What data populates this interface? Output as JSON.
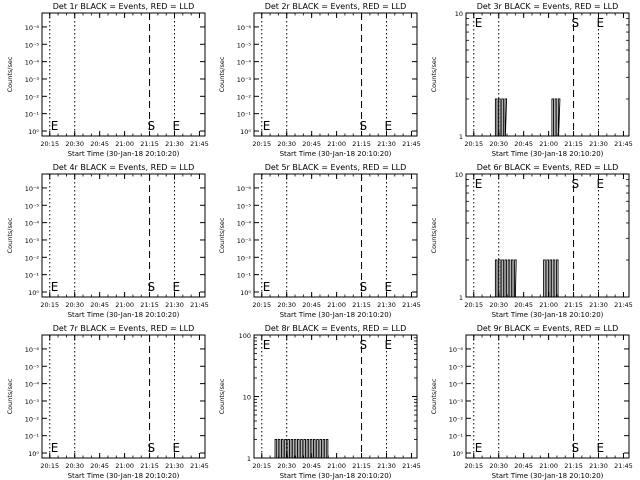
{
  "chart_data": [
    {
      "type": "line",
      "title": "Det 1r BLACK = Events, RED = LLD",
      "ylabel": "Counts/sec",
      "xlabel": "Start Time (30-Jan-18 20:10:20)",
      "yscale": "log",
      "y_ticks": [
        "10⁰",
        "10⁻¹",
        "10⁻²",
        "10⁻³",
        "10⁻⁴",
        "10⁻⁵",
        "10⁻⁶"
      ],
      "x_ticks": [
        "20:15",
        "20:30",
        "20:45",
        "21:00",
        "21:15",
        "21:30",
        "21:45"
      ],
      "markers": [
        {
          "label": "E",
          "time": "20:15"
        },
        {
          "label": "S",
          "time": "21:15"
        },
        {
          "label": "E",
          "time": "21:30"
        }
      ],
      "series": []
    },
    {
      "type": "line",
      "title": "Det 2r BLACK = Events, RED = LLD",
      "ylabel": "Counts/sec",
      "xlabel": "Start Time (30-Jan-18 20:10:20)",
      "yscale": "log",
      "y_ticks": [
        "10⁰",
        "10⁻¹",
        "10⁻²",
        "10⁻³",
        "10⁻⁴",
        "10⁻⁵",
        "10⁻⁶"
      ],
      "x_ticks": [
        "20:15",
        "20:30",
        "20:45",
        "21:00",
        "21:15",
        "21:30",
        "21:45"
      ],
      "markers": [
        {
          "label": "E",
          "time": "20:15"
        },
        {
          "label": "S",
          "time": "21:15"
        },
        {
          "label": "E",
          "time": "21:30"
        }
      ],
      "series": []
    },
    {
      "type": "line",
      "title": "Det 3r BLACK = Events, RED = LLD",
      "ylabel": "Counts/sec",
      "xlabel": "Start Time (30-Jan-18 20:10:20)",
      "yscale": "log",
      "y_ticks": [
        "1",
        "10"
      ],
      "x_ticks": [
        "20:15",
        "20:30",
        "20:45",
        "21:00",
        "21:15",
        "21:30",
        "21:45"
      ],
      "markers": [
        {
          "label": "E",
          "time": "20:15"
        },
        {
          "label": "S",
          "time": "21:15"
        },
        {
          "label": "E",
          "time": "21:30"
        }
      ],
      "series": [
        {
          "bursts": [
            {
              "start": "20:28",
              "end": "20:34",
              "value": 2
            },
            {
              "start": "21:02",
              "end": "21:06",
              "value": 2
            }
          ]
        }
      ]
    },
    {
      "type": "line",
      "title": "Det 4r BLACK = Events, RED = LLD",
      "ylabel": "Counts/sec",
      "xlabel": "Start Time (30-Jan-18 20:10:20)",
      "yscale": "log",
      "y_ticks": [
        "10⁰",
        "10⁻¹",
        "10⁻²",
        "10⁻³",
        "10⁻⁴",
        "10⁻⁵",
        "10⁻⁶"
      ],
      "x_ticks": [
        "20:15",
        "20:30",
        "20:45",
        "21:00",
        "21:15",
        "21:30",
        "21:45"
      ],
      "markers": [
        {
          "label": "E",
          "time": "20:15"
        },
        {
          "label": "S",
          "time": "21:15"
        },
        {
          "label": "E",
          "time": "21:30"
        }
      ],
      "series": []
    },
    {
      "type": "line",
      "title": "Det 5r BLACK = Events, RED = LLD",
      "ylabel": "Counts/sec",
      "xlabel": "Start Time (30-Jan-18 20:10:20)",
      "yscale": "log",
      "y_ticks": [
        "10⁰",
        "10⁻¹",
        "10⁻²",
        "10⁻³",
        "10⁻⁴",
        "10⁻⁵",
        "10⁻⁶"
      ],
      "x_ticks": [
        "20:15",
        "20:30",
        "20:45",
        "21:00",
        "21:15",
        "21:30",
        "21:45"
      ],
      "markers": [
        {
          "label": "E",
          "time": "20:15"
        },
        {
          "label": "S",
          "time": "21:15"
        },
        {
          "label": "E",
          "time": "21:30"
        }
      ],
      "series": []
    },
    {
      "type": "line",
      "title": "Det 6r BLACK = Events, RED = LLD",
      "ylabel": "Counts/sec",
      "xlabel": "Start Time (30-Jan-18 20:10:20)",
      "yscale": "log",
      "y_ticks": [
        "1",
        "10"
      ],
      "x_ticks": [
        "20:15",
        "20:30",
        "20:45",
        "21:00",
        "21:15",
        "21:30",
        "21:45"
      ],
      "markers": [
        {
          "label": "E",
          "time": "20:15"
        },
        {
          "label": "S",
          "time": "21:15"
        },
        {
          "label": "E",
          "time": "21:30"
        }
      ],
      "series": [
        {
          "bursts": [
            {
              "start": "20:28",
              "end": "20:40",
              "value": 2
            },
            {
              "start": "20:57",
              "end": "21:06",
              "value": 2
            }
          ]
        }
      ]
    },
    {
      "type": "line",
      "title": "Det 7r BLACK = Events, RED = LLD",
      "ylabel": "Counts/sec",
      "xlabel": "Start Time (30-Jan-18 20:10:20)",
      "yscale": "log",
      "y_ticks": [
        "10⁰",
        "10⁻¹",
        "10⁻²",
        "10⁻³",
        "10⁻⁴",
        "10⁻⁵",
        "10⁻⁶"
      ],
      "x_ticks": [
        "20:15",
        "20:30",
        "20:45",
        "21:00",
        "21:15",
        "21:30",
        "21:45"
      ],
      "markers": [
        {
          "label": "E",
          "time": "20:15"
        },
        {
          "label": "S",
          "time": "21:15"
        },
        {
          "label": "E",
          "time": "21:30"
        }
      ],
      "series": []
    },
    {
      "type": "line",
      "title": "Det 8r BLACK = Events, RED = LLD",
      "ylabel": "Counts/sec",
      "xlabel": "Start Time (30-Jan-18 20:10:20)",
      "yscale": "log",
      "y_ticks": [
        "1",
        "10",
        "100"
      ],
      "x_ticks": [
        "20:15",
        "20:30",
        "20:45",
        "21:00",
        "21:15",
        "21:30",
        "21:45"
      ],
      "markers": [
        {
          "label": "E",
          "time": "20:15"
        },
        {
          "label": "S",
          "time": "21:15"
        },
        {
          "label": "E",
          "time": "21:30"
        }
      ],
      "series": [
        {
          "bursts": [
            {
              "start": "20:23",
              "end": "20:55",
              "value": 2
            }
          ]
        }
      ]
    },
    {
      "type": "line",
      "title": "Det 9r BLACK = Events, RED = LLD",
      "ylabel": "Counts/sec",
      "xlabel": "Start Time (30-Jan-18 20:10:20)",
      "yscale": "log",
      "y_ticks": [
        "10⁰",
        "10⁻¹",
        "10⁻²",
        "10⁻³",
        "10⁻⁴",
        "10⁻⁵",
        "10⁻⁶"
      ],
      "x_ticks": [
        "20:15",
        "20:30",
        "20:45",
        "21:00",
        "21:15",
        "21:30",
        "21:45"
      ],
      "markers": [
        {
          "label": "E",
          "time": "20:15"
        },
        {
          "label": "S",
          "time": "21:15"
        },
        {
          "label": "E",
          "time": "21:30"
        }
      ],
      "series": []
    }
  ]
}
